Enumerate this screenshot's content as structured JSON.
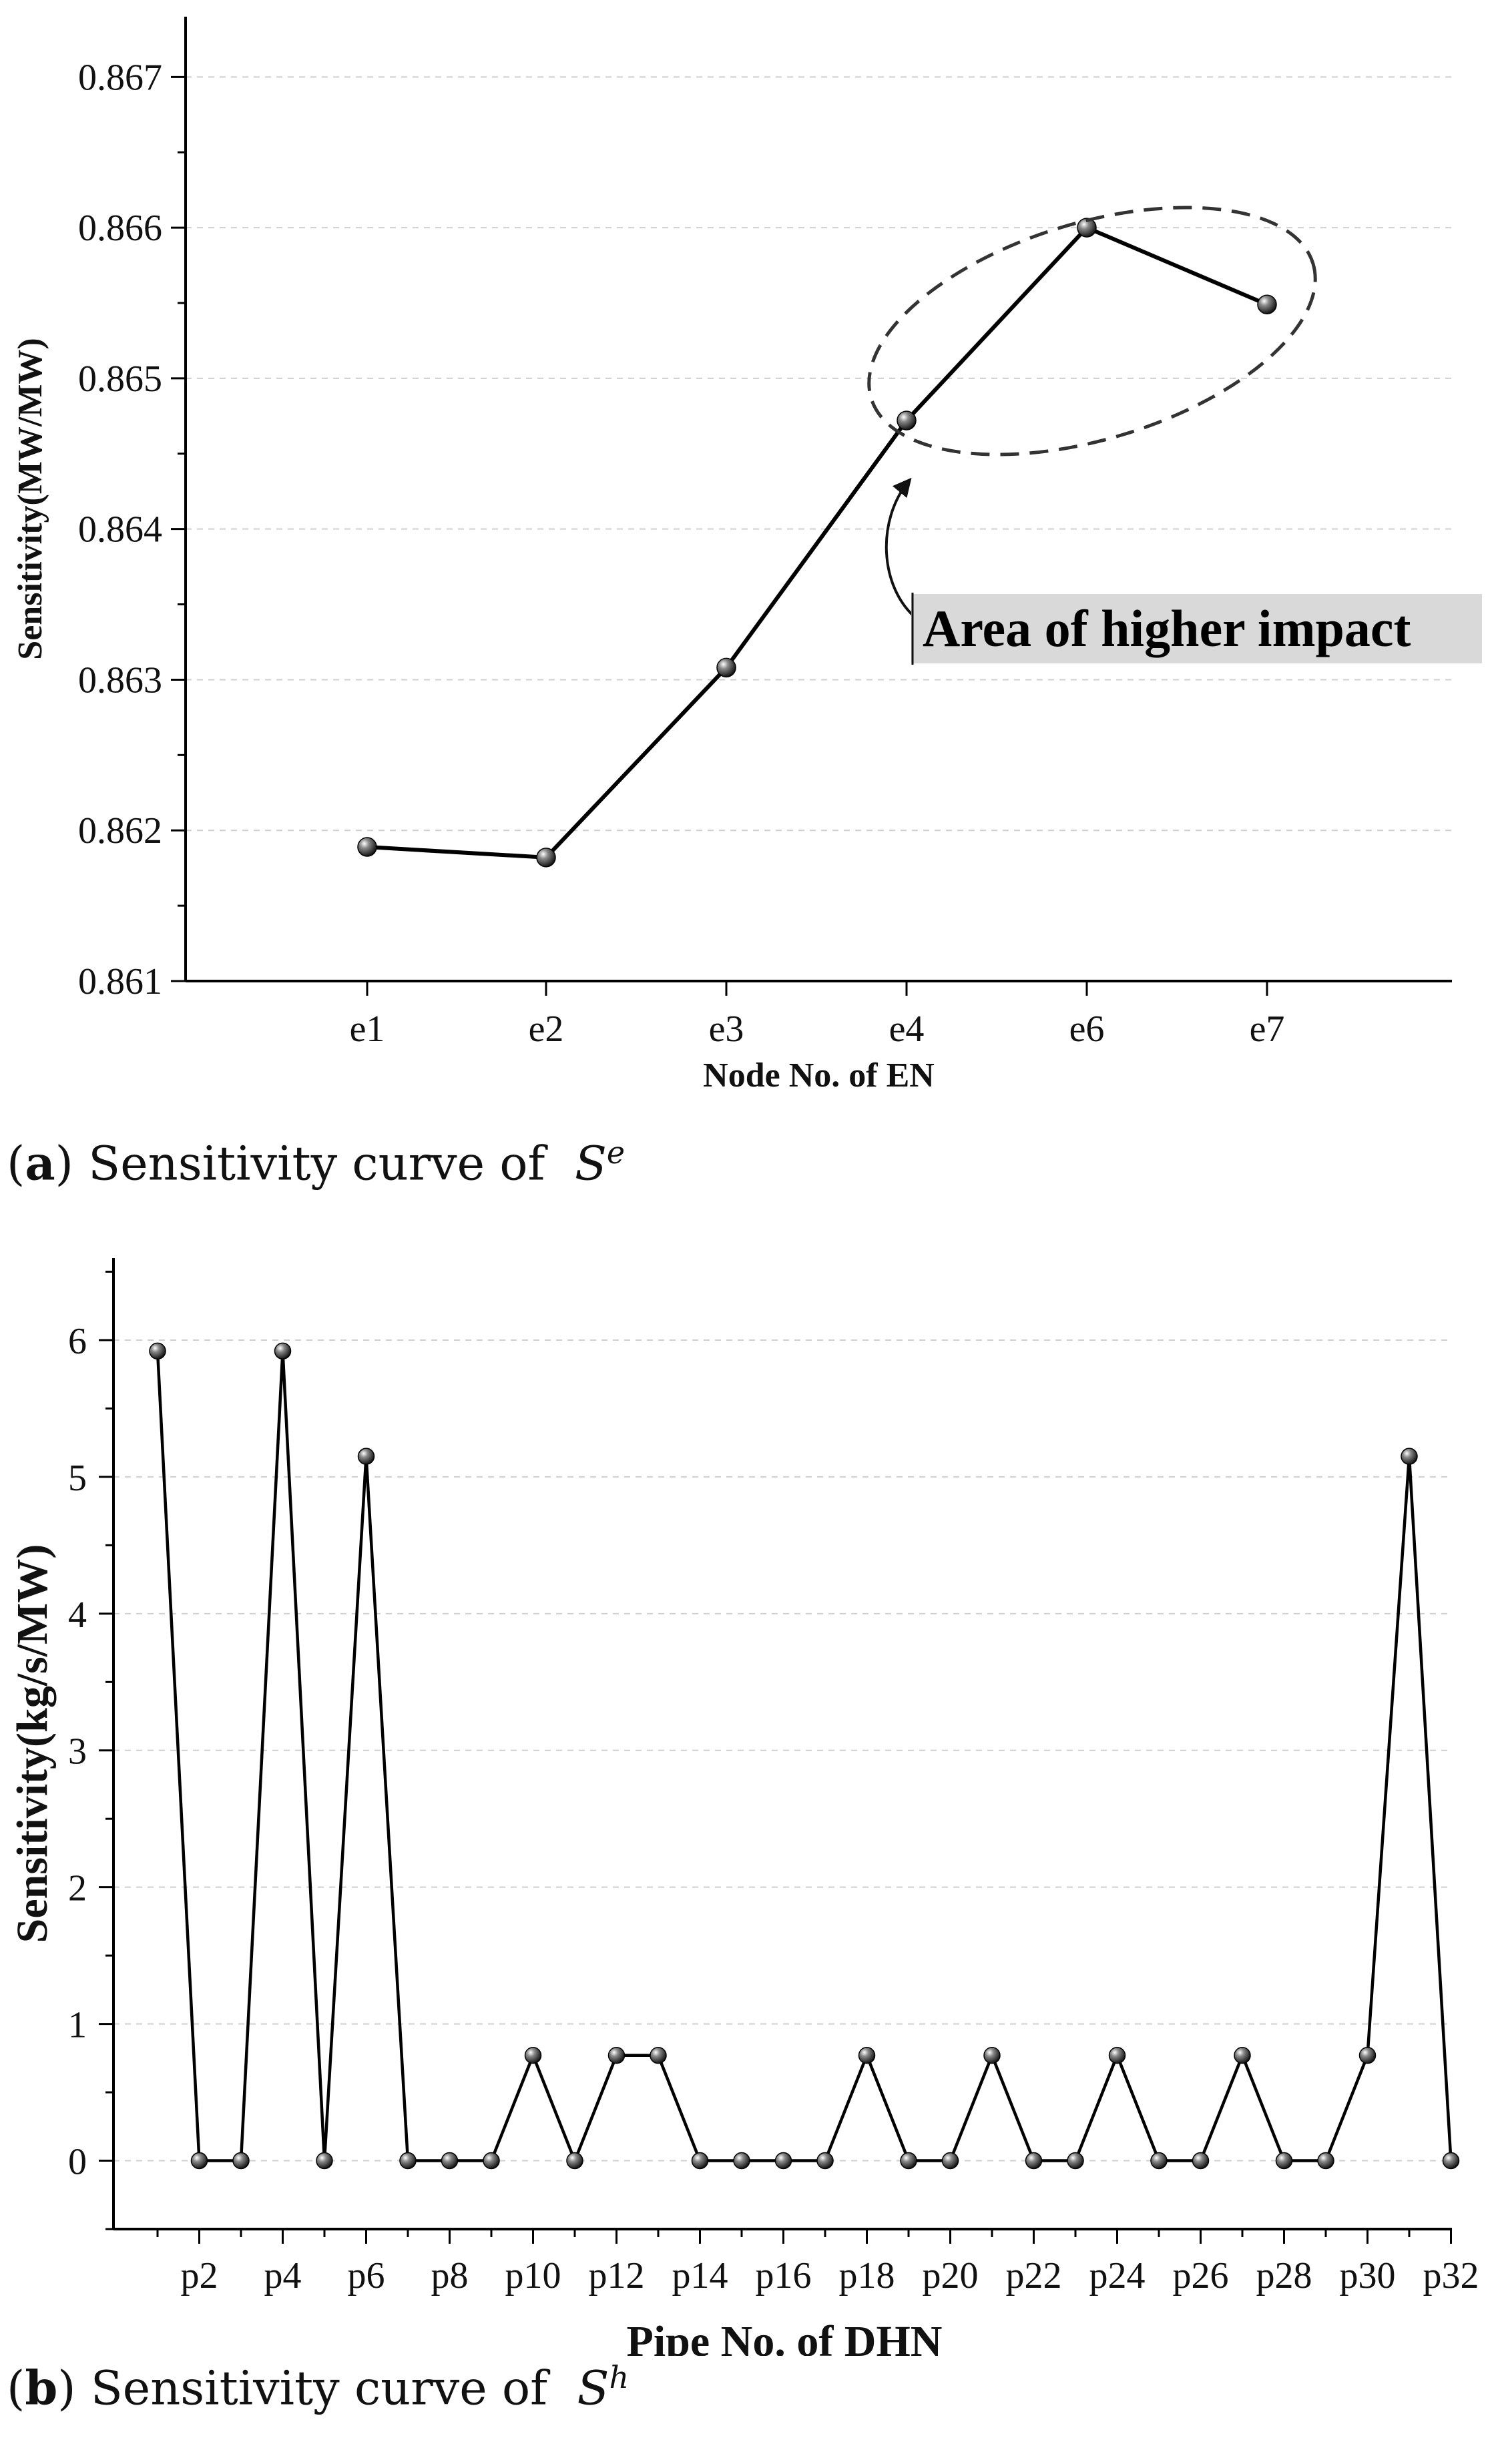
{
  "chart_data": [
    {
      "type": "line",
      "xlabel": "Node No. of EN",
      "ylabel": "Sensitivity(MW/MW)",
      "categories": [
        "e1",
        "e2",
        "e3",
        "e4",
        "e6",
        "e7"
      ],
      "values": [
        0.86189,
        0.86182,
        0.86308,
        0.86472,
        0.866,
        0.86549
      ],
      "ylim": [
        0.861,
        0.8674
      ],
      "yticks": [
        "0.861",
        "0.862",
        "0.863",
        "0.864",
        "0.865",
        "0.866",
        "0.867"
      ],
      "grid": "horizontal dashed",
      "annotation": "Area of higher impact",
      "caption": {
        "label": "a",
        "text": "Sensitivity curve of",
        "symbol": "S",
        "superscript": "e"
      }
    },
    {
      "type": "line",
      "xlabel": "Pipe No. of DHN",
      "ylabel": "Sensitivity(kg/s/MW)",
      "x": [
        1,
        2,
        3,
        4,
        5,
        6,
        7,
        8,
        9,
        10,
        11,
        12,
        13,
        14,
        15,
        16,
        17,
        18,
        19,
        20,
        21,
        22,
        23,
        24,
        25,
        26,
        27,
        28,
        29,
        30,
        31,
        32
      ],
      "values": [
        5.92,
        0,
        0,
        5.92,
        0,
        5.15,
        0,
        0,
        0,
        0.77,
        0,
        0.77,
        0.77,
        0,
        0,
        0,
        0,
        0.77,
        0,
        0,
        0.77,
        0,
        0,
        0.77,
        0,
        0,
        0.77,
        0,
        0,
        0.77,
        5.15,
        0
      ],
      "tick_labels": [
        "p2",
        "p4",
        "p6",
        "p8",
        "p10",
        "p12",
        "p14",
        "p16",
        "p18",
        "p20",
        "p22",
        "p24",
        "p26",
        "p28",
        "p30",
        "p32"
      ],
      "tick_positions": [
        2,
        4,
        6,
        8,
        10,
        12,
        14,
        16,
        18,
        20,
        22,
        24,
        26,
        28,
        30,
        32
      ],
      "xlim": [
        0,
        32
      ],
      "ylim": [
        -0.5,
        6.6
      ],
      "yticks": [
        "0",
        "1",
        "2",
        "3",
        "4",
        "5",
        "6"
      ],
      "grid": "horizontal dashed",
      "caption": {
        "label": "b",
        "text": "Sensitivity curve of",
        "symbol": "S",
        "superscript": "h"
      }
    }
  ]
}
